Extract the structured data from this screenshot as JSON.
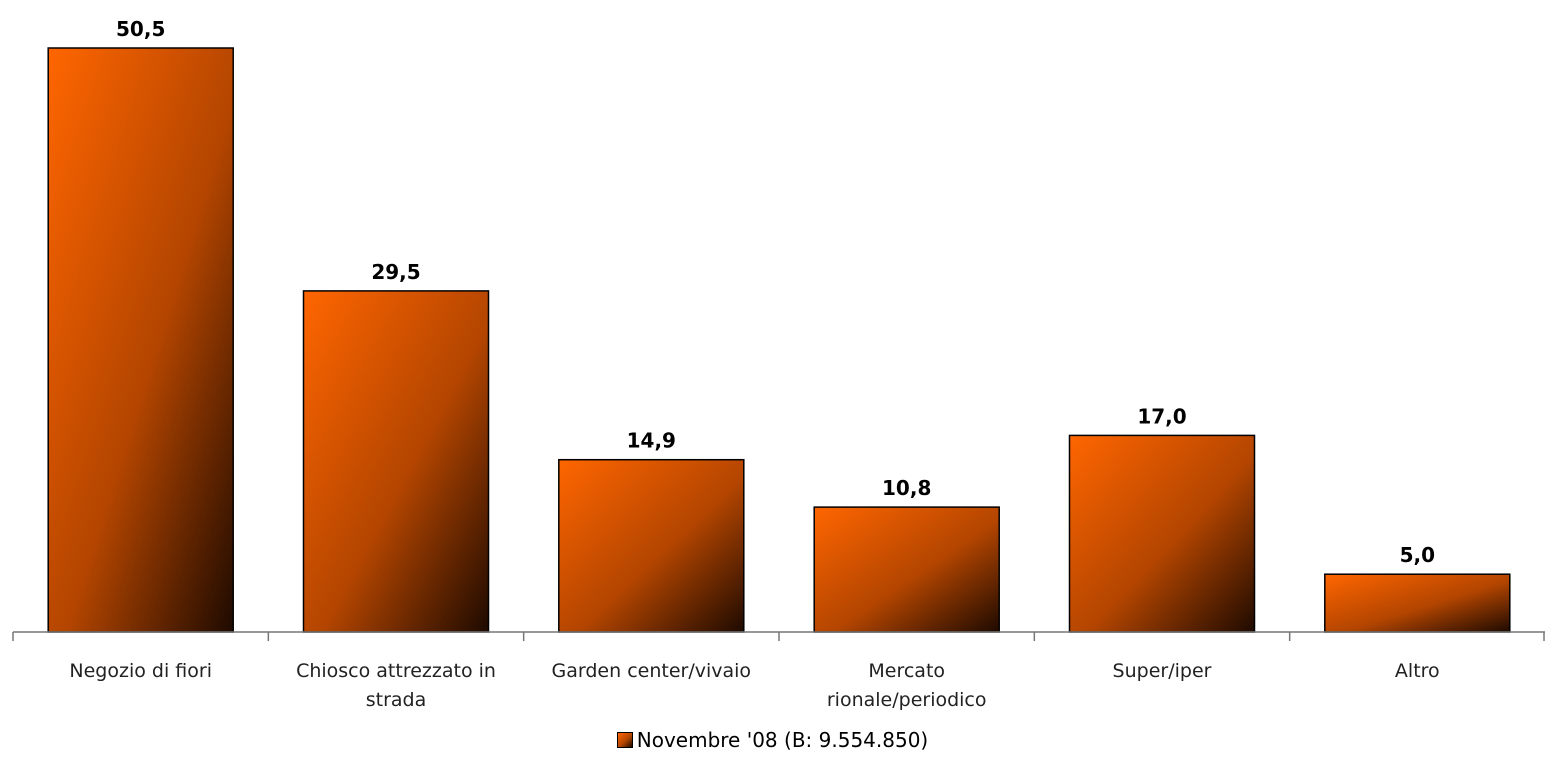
{
  "chart_data": {
    "type": "bar",
    "categories": [
      "Negozio di fiori",
      "Chiosco attrezzato in strada",
      "Garden center/vivaio",
      "Mercato rionale/periodico",
      "Super/iper",
      "Altro"
    ],
    "category_lines": [
      [
        "Negozio di fiori"
      ],
      [
        "Chiosco attrezzato in",
        "strada"
      ],
      [
        "Garden center/vivaio"
      ],
      [
        "Mercato",
        "rionale/periodico"
      ],
      [
        "Super/iper"
      ],
      [
        "Altro"
      ]
    ],
    "series": [
      {
        "name": "Novembre '08 (B: 9.554.850)",
        "values": [
          50.5,
          29.5,
          14.9,
          10.8,
          17.0,
          5.0
        ],
        "value_labels": [
          "50,5",
          "29,5",
          "14,9",
          "10,8",
          "17,0",
          "5,0"
        ]
      }
    ],
    "ylim": [
      0,
      50.5
    ],
    "grid": false,
    "legend_position": "bottom-center",
    "colors": {
      "bar_start": "#ff6600",
      "bar_mid": "#b34500",
      "bar_end": "#1e0a00",
      "axis": "#777777"
    }
  }
}
